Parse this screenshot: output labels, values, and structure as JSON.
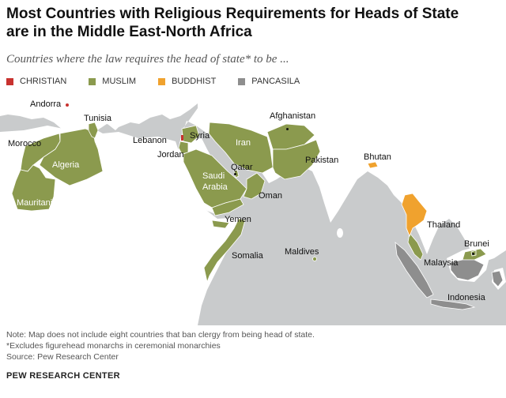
{
  "title": "Most Countries with Religious Requirements for Heads of State are in the Middle East-North Africa",
  "subtitle": "Countries where the law requires the head of state* to be ...",
  "legend": [
    {
      "label": "CHRISTIAN",
      "color": "#c8322f"
    },
    {
      "label": "MUSLIM",
      "color": "#8b9a4e"
    },
    {
      "label": "BUDDHIST",
      "color": "#f0a22e"
    },
    {
      "label": "PANCASILA",
      "color": "#8e8e8e"
    }
  ],
  "map": {
    "ocean_color": "#c9cbcc",
    "land_color": "#ffffff",
    "labels": {
      "andorra": "Andorra",
      "tunisia": "Tunisia",
      "morocco": "Morocco",
      "algeria": "Algeria",
      "mauritania": "Mauritania",
      "lebanon": "Lebanon",
      "syria": "Syria",
      "jordan": "Jordan",
      "iran": "Iran",
      "afghanistan": "Afghanistan",
      "pakistan": "Pakistan",
      "qatar": "Qatar",
      "saudi_arabia_1": "Saudi",
      "saudi_arabia_2": "Arabia",
      "oman": "Oman",
      "yemen": "Yemen",
      "somalia": "Somalia",
      "maldives": "Maldives",
      "bhutan": "Bhutan",
      "thailand": "Thailand",
      "brunei": "Brunei",
      "malaysia": "Malaysia",
      "indonesia": "Indonesia"
    }
  },
  "notes": [
    "Note: Map does not include eight countries that ban clergy from being head of state.",
    "*Excludes figurehead monarchs in ceremonial monarchies",
    "Source: Pew Research Center"
  ],
  "organization": "PEW RESEARCH CENTER"
}
